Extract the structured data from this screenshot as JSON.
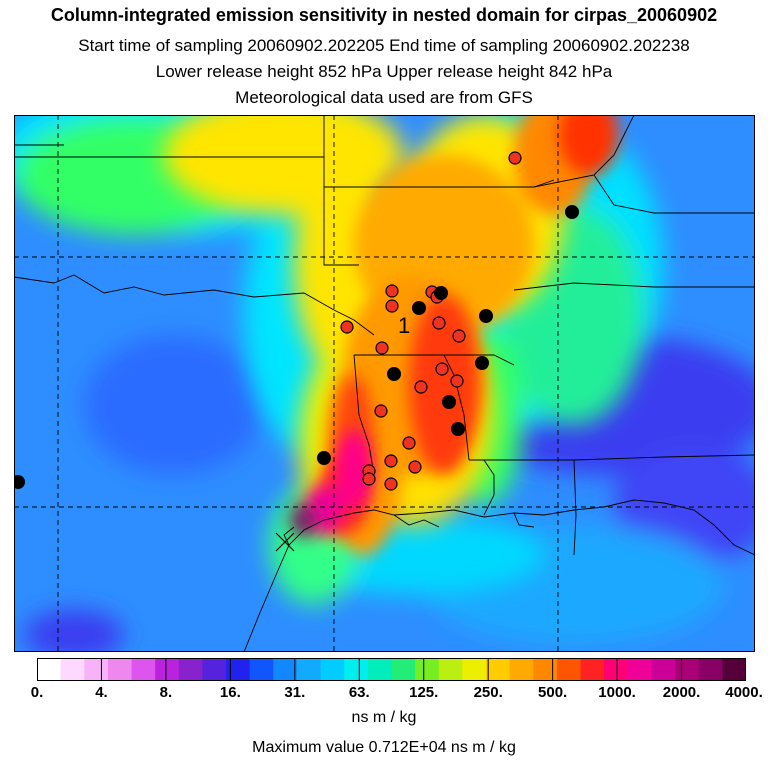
{
  "title": {
    "main": "Column-integrated emission sensitivity in nested domain for cirpas_20060902",
    "sampling": "Start time of sampling 20060902.202205     End time of sampling 20060902.202238",
    "release": "Lower release height  852 hPa       Upper release height  842 hPa",
    "met": "Meteorological data used are from GFS"
  },
  "map": {
    "receptor_label": "1",
    "description_colors": {
      "background_low": "#2f8cff",
      "cyan": "#00e5ff",
      "green": "#33ff66",
      "yellow": "#ffe500",
      "orange": "#ff9900",
      "red": "#ff3300",
      "magenta": "#ff0099",
      "purple": "#7a1a66",
      "blue_low": "#3a3cf0",
      "marker_red": "#ee3322",
      "marker_black": "#000000"
    }
  },
  "colorbar": {
    "colors": [
      "#ffffff",
      "#ffd8ff",
      "#f7b3f7",
      "#ee88ee",
      "#dd55ee",
      "#bb22dd",
      "#8822cc",
      "#5522dd",
      "#2222ee",
      "#1155ff",
      "#1188ff",
      "#11aaff",
      "#00ccff",
      "#00eeee",
      "#00eebb",
      "#22ee77",
      "#77ee22",
      "#bbee11",
      "#eeee00",
      "#ffcc00",
      "#ffaa00",
      "#ff8800",
      "#ff5500",
      "#ff2222",
      "#ff0077",
      "#ee0099",
      "#cc0099",
      "#aa0077",
      "#880066",
      "#55003a"
    ],
    "tick_labels": [
      "0.",
      "4.",
      "8.",
      "16.",
      "31.",
      "63.",
      "125.",
      "250.",
      "500.",
      "1000.",
      "2000.",
      "4000."
    ],
    "units": "ns m / kg",
    "max_value": "Maximum value  0.712E+04 ns m / kg"
  }
}
